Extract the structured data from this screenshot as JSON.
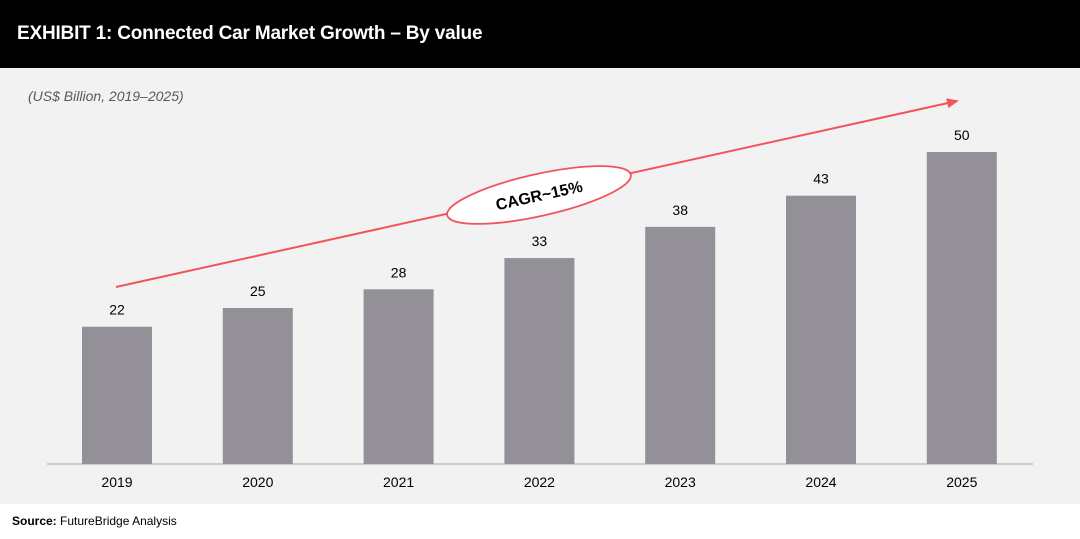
{
  "header": {
    "title": "EXHIBIT 1: Connected Car Market Growth – By value"
  },
  "chart_data": {
    "type": "bar",
    "title": "EXHIBIT 1: Connected Car Market Growth – By value",
    "subtitle": "(US$ Billion, 2019–2025)",
    "categories": [
      "2019",
      "2020",
      "2021",
      "2022",
      "2023",
      "2024",
      "2025"
    ],
    "values": [
      22,
      25,
      28,
      33,
      38,
      43,
      50
    ],
    "ylim": [
      0,
      50
    ],
    "xlabel": "",
    "ylabel": "",
    "grid": false,
    "annotation": {
      "text": "CAGR~15%"
    },
    "colors": {
      "bar": "#939197",
      "arrow": "#f2545b",
      "ellipse_border": "#f2545b"
    }
  },
  "source": {
    "label": "Source:",
    "text": "FutureBridge Analysis"
  }
}
